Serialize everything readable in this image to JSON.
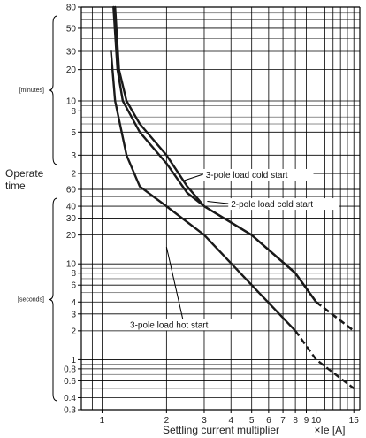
{
  "chart_data": {
    "type": "line",
    "x_scale": "log",
    "y_scale": "log",
    "xlim": [
      0.8,
      16
    ],
    "x_ticks": [
      1,
      2,
      3,
      4,
      5,
      6,
      7,
      8,
      9,
      10,
      15
    ],
    "x_tick_labels": [
      "1",
      "2",
      "3",
      "4",
      "5",
      "6",
      "7",
      "8",
      "9",
      "10",
      "15"
    ],
    "xlabel": "Settling current multiplier",
    "xunit": "×Ie [A]",
    "ylabel": "Operate time",
    "y_sections": [
      {
        "unit_label": "[minutes]",
        "range": [
          2,
          80
        ],
        "ticks": [
          2,
          3,
          5,
          8,
          10,
          20,
          30,
          50,
          80
        ],
        "tick_labels": [
          "2",
          "3",
          "5",
          "8",
          "10",
          "20",
          "30",
          "50",
          "80"
        ]
      },
      {
        "unit_label": "[seconds]",
        "range": [
          0.3,
          60
        ],
        "ticks": [
          0.3,
          0.4,
          0.6,
          0.8,
          1,
          2,
          3,
          4,
          6,
          8,
          10,
          20,
          30,
          40,
          60
        ],
        "tick_labels": [
          "0.3",
          "0.4",
          "0.6",
          "0.8",
          "1",
          "2",
          "3",
          "4",
          "6",
          "8",
          "10",
          "20",
          "30",
          "40",
          "60"
        ]
      }
    ],
    "grid": true,
    "series": [
      {
        "name": "3-pole load cold start",
        "points": [
          [
            1.15,
            80,
            "min"
          ],
          [
            1.2,
            20,
            "min"
          ],
          [
            1.3,
            10,
            "min"
          ],
          [
            1.5,
            6,
            "min"
          ],
          [
            2,
            3,
            "min"
          ],
          [
            2.5,
            1.5,
            "min"
          ],
          [
            3,
            40,
            "s"
          ],
          [
            5,
            20,
            "s"
          ],
          [
            8,
            8,
            "s"
          ],
          [
            10,
            4,
            "s"
          ],
          [
            15,
            2,
            "s"
          ]
        ],
        "dashed_from_x": 10
      },
      {
        "name": "2-pole load cold start",
        "points": [
          [
            1.13,
            80,
            "min"
          ],
          [
            1.18,
            20,
            "min"
          ],
          [
            1.25,
            10,
            "min"
          ],
          [
            1.5,
            5,
            "min"
          ],
          [
            2,
            2.5,
            "min"
          ],
          [
            2.5,
            1.3,
            "min"
          ],
          [
            3,
            40,
            "s"
          ],
          [
            5,
            20,
            "s"
          ],
          [
            8,
            8,
            "s"
          ],
          [
            10,
            4,
            "s"
          ],
          [
            15,
            2,
            "s"
          ]
        ],
        "dashed_from_x": 10
      },
      {
        "name": "3-pole load hot start",
        "points": [
          [
            1.1,
            30,
            "min"
          ],
          [
            1.15,
            10,
            "min"
          ],
          [
            1.3,
            3,
            "min"
          ],
          [
            1.5,
            1.5,
            "min"
          ],
          [
            2,
            40,
            "s"
          ],
          [
            3,
            20,
            "s"
          ],
          [
            5,
            6,
            "s"
          ],
          [
            8,
            2,
            "s"
          ],
          [
            10,
            1,
            "s"
          ],
          [
            15,
            0.5,
            "s"
          ]
        ],
        "dashed_from_x": 8
      }
    ]
  }
}
